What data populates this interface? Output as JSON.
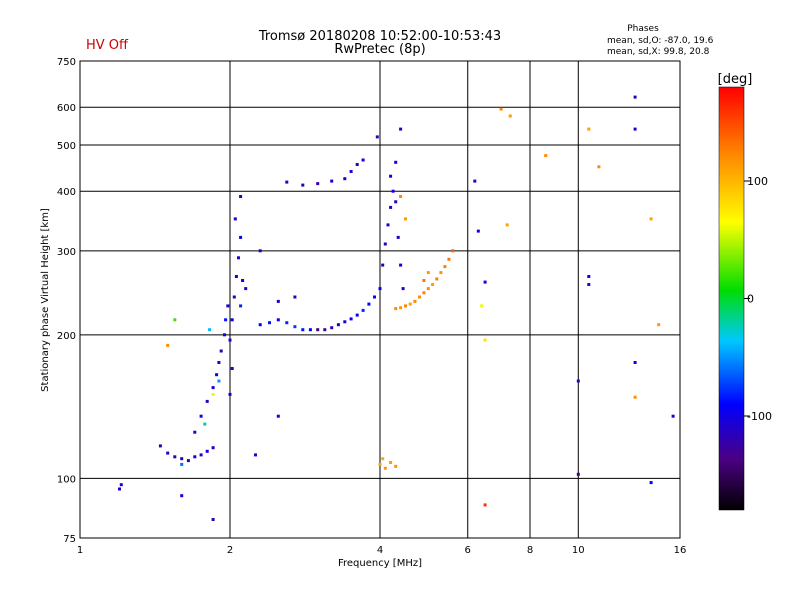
{
  "status": {
    "text": "HV Off",
    "color": "#cc0000"
  },
  "title": {
    "line1": "Tromsø 20180208 10:52:00-10:53:43",
    "line2": "RwPretec (8p)"
  },
  "phase_info": {
    "heading": "Phases",
    "line1": "mean, sd,O: -87.0, 19.6",
    "line2": "mean, sd,X:  99.8, 20.8"
  },
  "colorbar": {
    "unit_label": "[deg]",
    "ticks": [
      {
        "value": 100,
        "label": "100"
      },
      {
        "value": 0,
        "label": "0"
      },
      {
        "value": -100,
        "label": "-100"
      }
    ],
    "range": [
      -180,
      180
    ]
  },
  "chart_data": {
    "type": "scatter",
    "title": "Tromsø 20180208 10:52:00-10:53:43",
    "subtitle": "RwPretec (8p)",
    "xlabel": "Frequency [MHz]",
    "ylabel": "Stationary phase Virtual Height [km]",
    "x_scale": "log",
    "y_scale": "log",
    "xlim": [
      1,
      16
    ],
    "ylim": [
      75,
      750
    ],
    "x_ticks": [
      1,
      2,
      4,
      6,
      8,
      10,
      16
    ],
    "y_ticks": [
      75,
      100,
      200,
      300,
      400,
      500,
      600,
      750
    ],
    "x_gridlines": [
      2,
      4,
      6,
      8,
      10
    ],
    "y_gridlines": [
      100,
      200,
      300,
      400,
      500,
      600
    ],
    "color_variable": "phase [deg]",
    "points": [
      [
        1.2,
        95,
        -110
      ],
      [
        1.21,
        97,
        -105
      ],
      [
        1.45,
        117,
        -115
      ],
      [
        1.5,
        113,
        -110
      ],
      [
        1.55,
        111,
        -120
      ],
      [
        1.6,
        110,
        -112
      ],
      [
        1.65,
        109,
        -118
      ],
      [
        1.7,
        111,
        -105
      ],
      [
        1.75,
        112,
        -110
      ],
      [
        1.8,
        114,
        -100
      ],
      [
        1.85,
        116,
        -108
      ],
      [
        1.6,
        107,
        -60
      ],
      [
        1.7,
        125,
        -110
      ],
      [
        1.75,
        135,
        -100
      ],
      [
        1.8,
        145,
        -115
      ],
      [
        1.85,
        155,
        -95
      ],
      [
        1.88,
        165,
        -105
      ],
      [
        1.9,
        175,
        -110
      ],
      [
        1.92,
        185,
        -120
      ],
      [
        1.95,
        200,
        -100
      ],
      [
        1.96,
        215,
        -85
      ],
      [
        1.98,
        230,
        -110
      ],
      [
        1.82,
        205,
        -40
      ],
      [
        1.85,
        150,
        60
      ],
      [
        1.78,
        130,
        -20
      ],
      [
        1.9,
        160,
        -50
      ],
      [
        2.0,
        195,
        -110
      ],
      [
        2.02,
        215,
        -100
      ],
      [
        2.04,
        240,
        -115
      ],
      [
        2.06,
        265,
        -105
      ],
      [
        2.08,
        290,
        -100
      ],
      [
        2.1,
        320,
        -95
      ],
      [
        2.05,
        350,
        -110
      ],
      [
        2.1,
        390,
        -120
      ],
      [
        2.12,
        260,
        -90
      ],
      [
        2.0,
        150,
        -100
      ],
      [
        2.02,
        170,
        -110
      ],
      [
        2.1,
        230,
        -80
      ],
      [
        2.15,
        250,
        -105
      ],
      [
        2.3,
        210,
        -90
      ],
      [
        2.4,
        212,
        -85
      ],
      [
        2.5,
        215,
        -95
      ],
      [
        2.6,
        212,
        -80
      ],
      [
        2.7,
        208,
        -75
      ],
      [
        2.8,
        205,
        -85
      ],
      [
        2.9,
        205,
        -90
      ],
      [
        3.0,
        205,
        -140
      ],
      [
        3.1,
        205,
        -130
      ],
      [
        3.2,
        207,
        -120
      ],
      [
        3.3,
        210,
        -110
      ],
      [
        3.4,
        213,
        -100
      ],
      [
        3.5,
        216,
        -95
      ],
      [
        3.6,
        220,
        -100
      ],
      [
        3.7,
        225,
        -80
      ],
      [
        3.8,
        232,
        -90
      ],
      [
        3.9,
        240,
        -100
      ],
      [
        2.5,
        235,
        -105
      ],
      [
        2.7,
        240,
        -110
      ],
      [
        2.6,
        418,
        -110
      ],
      [
        2.8,
        412,
        -115
      ],
      [
        3.0,
        415,
        -120
      ],
      [
        3.2,
        420,
        -105
      ],
      [
        3.4,
        425,
        -100
      ],
      [
        3.5,
        440,
        -110
      ],
      [
        3.6,
        455,
        -115
      ],
      [
        3.7,
        465,
        -100
      ],
      [
        4.0,
        250,
        -100
      ],
      [
        4.05,
        280,
        -110
      ],
      [
        4.1,
        310,
        -120
      ],
      [
        4.15,
        340,
        -105
      ],
      [
        4.2,
        370,
        -110
      ],
      [
        4.25,
        400,
        -100
      ],
      [
        4.3,
        380,
        -115
      ],
      [
        4.35,
        320,
        -105
      ],
      [
        4.4,
        280,
        -100
      ],
      [
        4.45,
        250,
        -110
      ],
      [
        4.2,
        430,
        -110
      ],
      [
        4.3,
        460,
        -100
      ],
      [
        4.4,
        540,
        -110
      ],
      [
        3.95,
        520,
        -120
      ],
      [
        4.3,
        227,
        120
      ],
      [
        4.4,
        228,
        115
      ],
      [
        4.5,
        230,
        125
      ],
      [
        4.6,
        232,
        110
      ],
      [
        4.7,
        235,
        120
      ],
      [
        4.8,
        240,
        118
      ],
      [
        4.9,
        245,
        125
      ],
      [
        5.0,
        250,
        120
      ],
      [
        5.1,
        255,
        110
      ],
      [
        5.2,
        262,
        125
      ],
      [
        5.3,
        270,
        118
      ],
      [
        5.4,
        278,
        125
      ],
      [
        5.5,
        288,
        130
      ],
      [
        5.6,
        300,
        140
      ],
      [
        5.0,
        270,
        115
      ],
      [
        4.9,
        260,
        130
      ],
      [
        4.5,
        350,
        115
      ],
      [
        4.4,
        390,
        120
      ],
      [
        4.0,
        107,
        110
      ],
      [
        4.1,
        105,
        115
      ],
      [
        4.2,
        108,
        112
      ],
      [
        4.3,
        106,
        118
      ],
      [
        4.05,
        110,
        105
      ],
      [
        6.2,
        420,
        -110
      ],
      [
        6.3,
        330,
        -100
      ],
      [
        6.5,
        258,
        -105
      ],
      [
        6.4,
        230,
        60
      ],
      [
        6.5,
        195,
        80
      ],
      [
        7.0,
        595,
        125
      ],
      [
        7.3,
        575,
        115
      ],
      [
        7.2,
        340,
        110
      ],
      [
        6.5,
        88,
        160
      ],
      [
        8.6,
        475,
        120
      ],
      [
        10.0,
        160,
        -110
      ],
      [
        10.0,
        102,
        -140
      ],
      [
        10.5,
        540,
        110
      ],
      [
        10.5,
        265,
        -100
      ],
      [
        10.5,
        255,
        -120
      ],
      [
        11.0,
        450,
        120
      ],
      [
        13.0,
        630,
        -120
      ],
      [
        13.0,
        540,
        -110
      ],
      [
        13.0,
        175,
        -100
      ],
      [
        13.0,
        148,
        120
      ],
      [
        14.0,
        350,
        110
      ],
      [
        14.5,
        210,
        115
      ],
      [
        15.5,
        135,
        -110
      ],
      [
        14.0,
        98,
        -90
      ],
      [
        1.55,
        215,
        20
      ],
      [
        1.5,
        190,
        120
      ],
      [
        1.6,
        92,
        -100
      ],
      [
        1.85,
        82,
        -120
      ],
      [
        2.25,
        112,
        -110
      ],
      [
        2.5,
        135,
        -100
      ],
      [
        2.3,
        300,
        -105
      ]
    ]
  }
}
